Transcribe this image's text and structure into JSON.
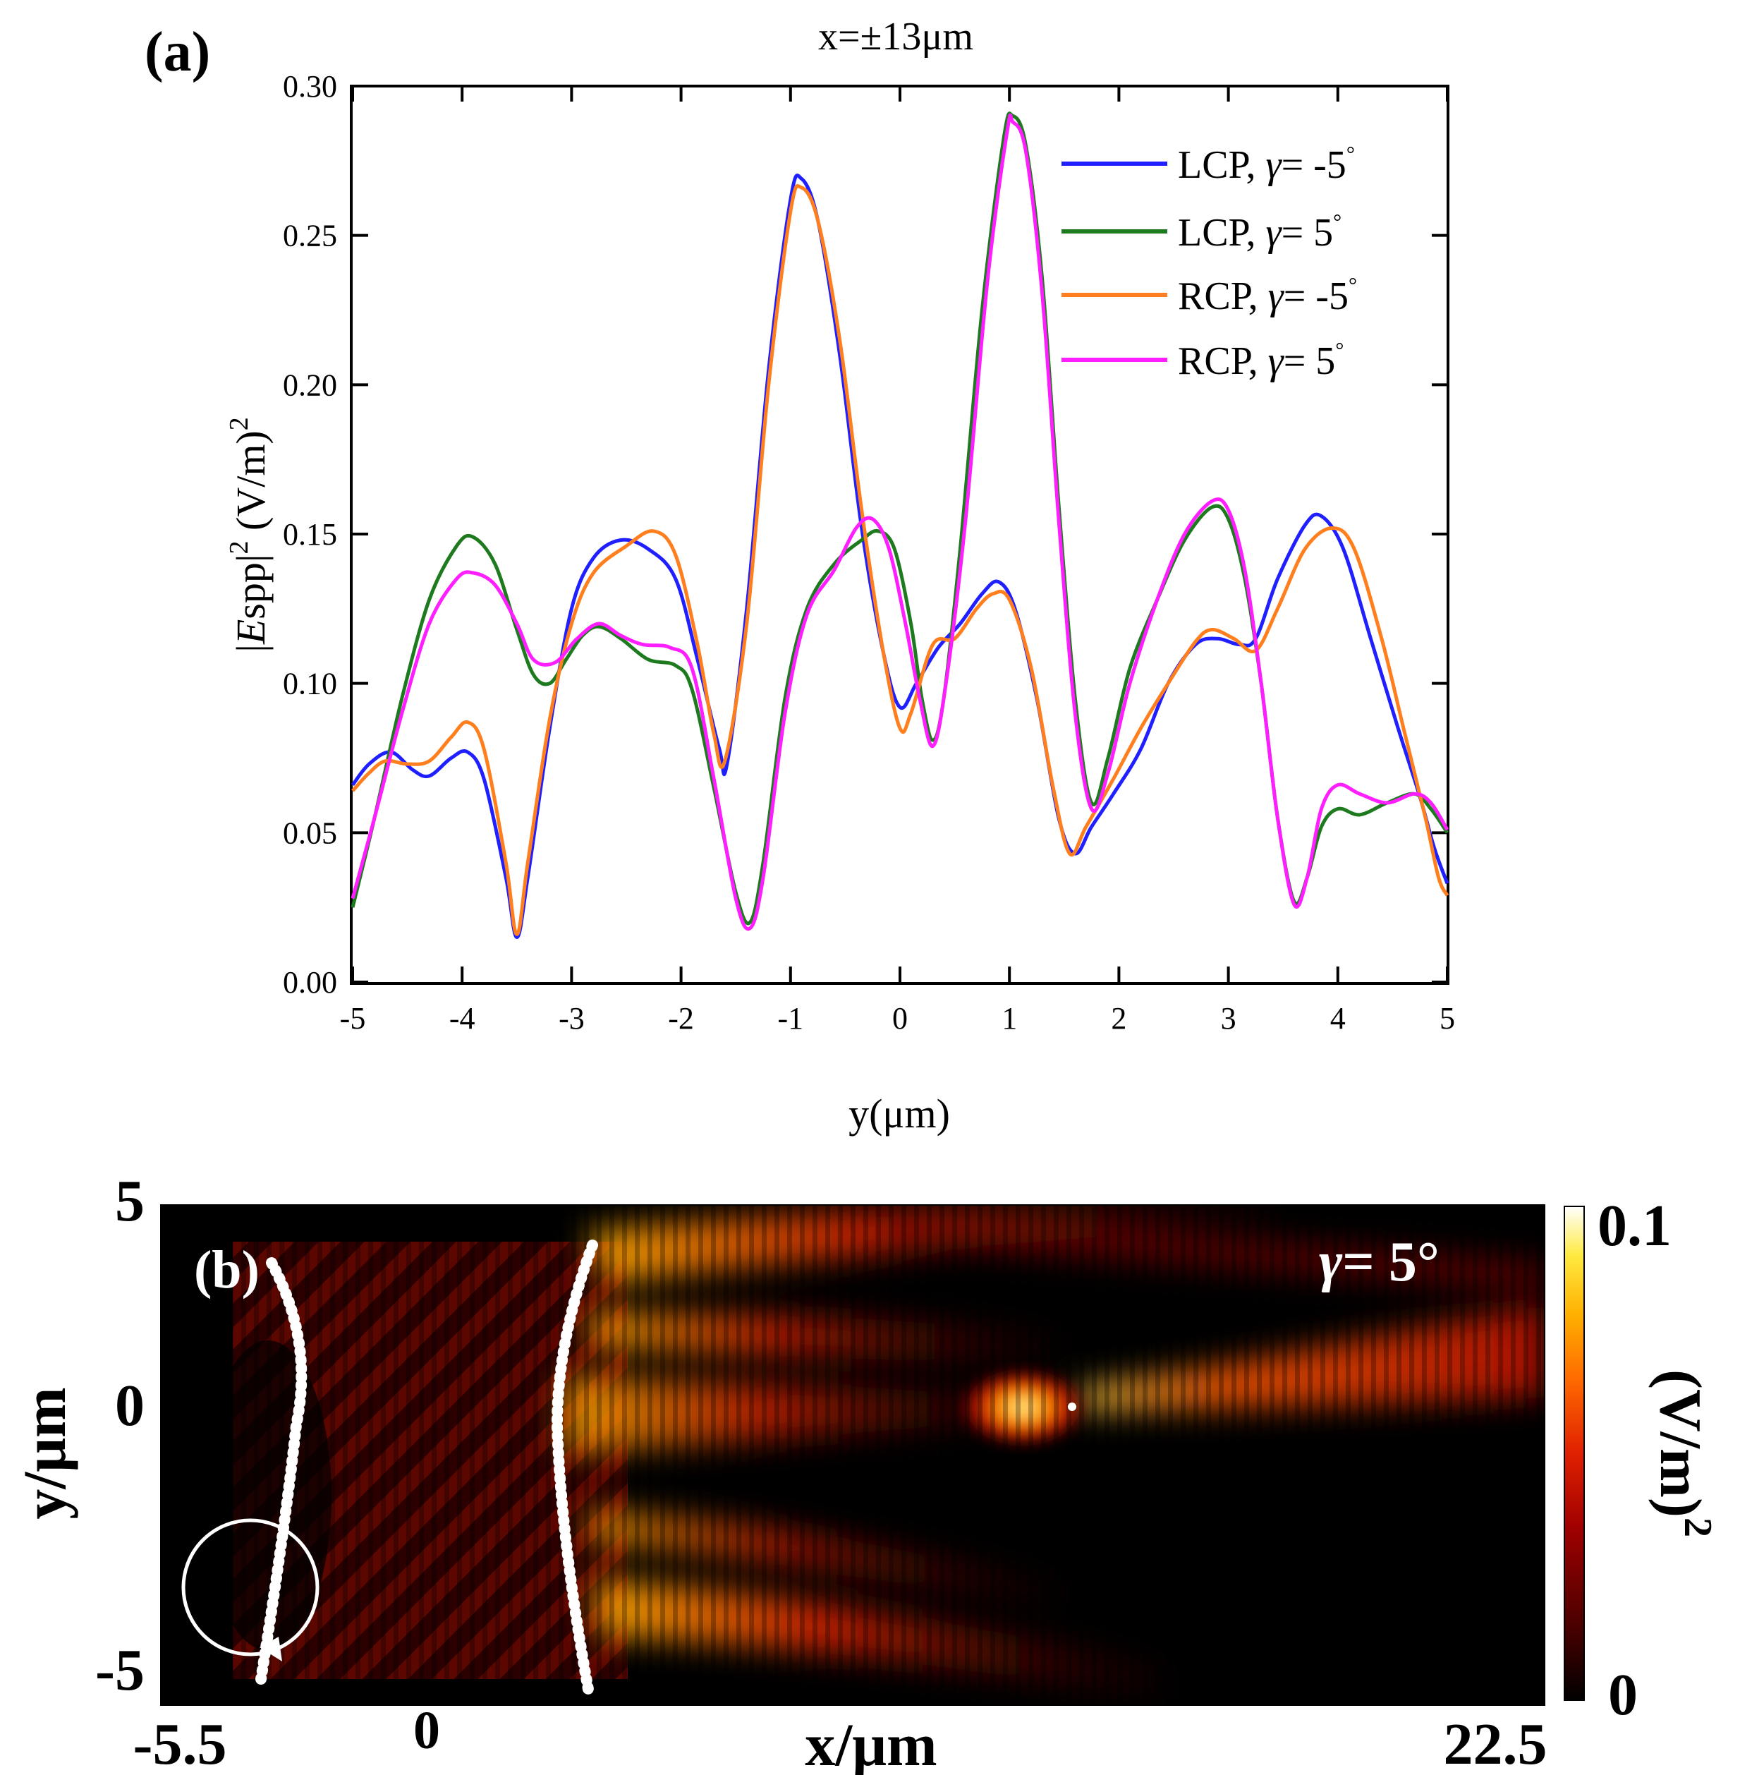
{
  "chart_data": [
    {
      "panel": "(a)",
      "type": "line",
      "title": "x=±13μm",
      "xlabel": "y(μm)",
      "ylabel_parts": [
        "|",
        "E",
        "spp|",
        "2",
        " (V/m)",
        "2"
      ],
      "xlim": [
        -5,
        5
      ],
      "ylim": [
        0,
        0.3
      ],
      "xticks": [
        "-5",
        "-4",
        "-3",
        "-2",
        "-1",
        "0",
        "1",
        "2",
        "3",
        "4",
        "5"
      ],
      "yticks": [
        "0.00",
        "0.05",
        "0.10",
        "0.15",
        "0.20",
        "0.25",
        "0.30"
      ],
      "legend_position": "top-right",
      "series": [
        {
          "name": "LCP, γ= -5°",
          "label_prefix": "LCP, ",
          "gamma_value": "= -5",
          "color": "#1f1fff",
          "points": [
            [
              -5,
              0.066
            ],
            [
              -4.85,
              0.073
            ],
            [
              -4.65,
              0.077
            ],
            [
              -4.45,
              0.071
            ],
            [
              -4.3,
              0.069
            ],
            [
              -4.1,
              0.075
            ],
            [
              -3.95,
              0.077
            ],
            [
              -3.8,
              0.068
            ],
            [
              -3.6,
              0.035
            ],
            [
              -3.5,
              0.015
            ],
            [
              -3.4,
              0.035
            ],
            [
              -3.2,
              0.085
            ],
            [
              -3,
              0.125
            ],
            [
              -2.8,
              0.142
            ],
            [
              -2.55,
              0.148
            ],
            [
              -2.3,
              0.145
            ],
            [
              -2.05,
              0.135
            ],
            [
              -1.85,
              0.108
            ],
            [
              -1.65,
              0.078
            ],
            [
              -1.58,
              0.073
            ],
            [
              -1.4,
              0.125
            ],
            [
              -1.2,
              0.205
            ],
            [
              -1.0,
              0.262
            ],
            [
              -0.9,
              0.269
            ],
            [
              -0.75,
              0.255
            ],
            [
              -0.55,
              0.21
            ],
            [
              -0.35,
              0.152
            ],
            [
              -0.15,
              0.11
            ],
            [
              0,
              0.092
            ],
            [
              0.15,
              0.1
            ],
            [
              0.35,
              0.112
            ],
            [
              0.55,
              0.12
            ],
            [
              0.75,
              0.13
            ],
            [
              0.9,
              0.134
            ],
            [
              1.05,
              0.125
            ],
            [
              1.25,
              0.095
            ],
            [
              1.45,
              0.055
            ],
            [
              1.6,
              0.043
            ],
            [
              1.75,
              0.052
            ],
            [
              1.95,
              0.063
            ],
            [
              2.2,
              0.078
            ],
            [
              2.45,
              0.1
            ],
            [
              2.7,
              0.113
            ],
            [
              2.9,
              0.115
            ],
            [
              3.1,
              0.113
            ],
            [
              3.25,
              0.115
            ],
            [
              3.45,
              0.135
            ],
            [
              3.7,
              0.153
            ],
            [
              3.85,
              0.156
            ],
            [
              4.05,
              0.145
            ],
            [
              4.3,
              0.115
            ],
            [
              4.55,
              0.085
            ],
            [
              4.75,
              0.062
            ],
            [
              4.88,
              0.045
            ],
            [
              5,
              0.033
            ]
          ]
        },
        {
          "name": "LCP, γ= 5°",
          "label_prefix": "LCP, ",
          "gamma_value": "= 5",
          "color": "#1e7a1e",
          "points": [
            [
              -5,
              0.025
            ],
            [
              -4.8,
              0.055
            ],
            [
              -4.55,
              0.095
            ],
            [
              -4.3,
              0.128
            ],
            [
              -4.05,
              0.146
            ],
            [
              -3.9,
              0.149
            ],
            [
              -3.7,
              0.14
            ],
            [
              -3.5,
              0.118
            ],
            [
              -3.35,
              0.103
            ],
            [
              -3.2,
              0.1
            ],
            [
              -3.05,
              0.108
            ],
            [
              -2.9,
              0.116
            ],
            [
              -2.75,
              0.119
            ],
            [
              -2.55,
              0.115
            ],
            [
              -2.3,
              0.108
            ],
            [
              -2.05,
              0.106
            ],
            [
              -1.9,
              0.098
            ],
            [
              -1.7,
              0.065
            ],
            [
              -1.5,
              0.03
            ],
            [
              -1.37,
              0.02
            ],
            [
              -1.25,
              0.04
            ],
            [
              -1.05,
              0.095
            ],
            [
              -0.85,
              0.125
            ],
            [
              -0.6,
              0.14
            ],
            [
              -0.35,
              0.148
            ],
            [
              -0.2,
              0.151
            ],
            [
              -0.05,
              0.145
            ],
            [
              0.1,
              0.12
            ],
            [
              0.2,
              0.095
            ],
            [
              0.3,
              0.081
            ],
            [
              0.4,
              0.095
            ],
            [
              0.55,
              0.145
            ],
            [
              0.75,
              0.225
            ],
            [
              0.95,
              0.283
            ],
            [
              1.03,
              0.29
            ],
            [
              1.15,
              0.28
            ],
            [
              1.3,
              0.235
            ],
            [
              1.45,
              0.16
            ],
            [
              1.6,
              0.095
            ],
            [
              1.75,
              0.06
            ],
            [
              1.9,
              0.075
            ],
            [
              2.1,
              0.105
            ],
            [
              2.35,
              0.128
            ],
            [
              2.6,
              0.148
            ],
            [
              2.85,
              0.159
            ],
            [
              3.0,
              0.155
            ],
            [
              3.15,
              0.135
            ],
            [
              3.3,
              0.1
            ],
            [
              3.45,
              0.055
            ],
            [
              3.6,
              0.027
            ],
            [
              3.72,
              0.035
            ],
            [
              3.85,
              0.052
            ],
            [
              4.0,
              0.058
            ],
            [
              4.2,
              0.056
            ],
            [
              4.45,
              0.06
            ],
            [
              4.7,
              0.063
            ],
            [
              4.85,
              0.058
            ],
            [
              5,
              0.05
            ]
          ]
        },
        {
          "name": "RCP, γ= -5°",
          "label_prefix": "RCP, ",
          "gamma_value": "= -5",
          "color": "#ff7f1e",
          "points": [
            [
              -5,
              0.064
            ],
            [
              -4.85,
              0.07
            ],
            [
              -4.7,
              0.074
            ],
            [
              -4.5,
              0.073
            ],
            [
              -4.3,
              0.074
            ],
            [
              -4.1,
              0.082
            ],
            [
              -3.95,
              0.087
            ],
            [
              -3.8,
              0.078
            ],
            [
              -3.6,
              0.04
            ],
            [
              -3.5,
              0.016
            ],
            [
              -3.4,
              0.04
            ],
            [
              -3.2,
              0.088
            ],
            [
              -3,
              0.12
            ],
            [
              -2.8,
              0.137
            ],
            [
              -2.5,
              0.146
            ],
            [
              -2.25,
              0.151
            ],
            [
              -2.05,
              0.143
            ],
            [
              -1.85,
              0.113
            ],
            [
              -1.7,
              0.083
            ],
            [
              -1.6,
              0.074
            ],
            [
              -1.4,
              0.12
            ],
            [
              -1.2,
              0.2
            ],
            [
              -1.0,
              0.258
            ],
            [
              -0.9,
              0.266
            ],
            [
              -0.75,
              0.255
            ],
            [
              -0.55,
              0.215
            ],
            [
              -0.35,
              0.158
            ],
            [
              -0.15,
              0.11
            ],
            [
              0,
              0.085
            ],
            [
              0.1,
              0.09
            ],
            [
              0.3,
              0.113
            ],
            [
              0.5,
              0.115
            ],
            [
              0.7,
              0.125
            ],
            [
              0.85,
              0.13
            ],
            [
              1.0,
              0.128
            ],
            [
              1.2,
              0.105
            ],
            [
              1.4,
              0.065
            ],
            [
              1.55,
              0.043
            ],
            [
              1.7,
              0.052
            ],
            [
              1.95,
              0.068
            ],
            [
              2.2,
              0.085
            ],
            [
              2.45,
              0.1
            ],
            [
              2.7,
              0.114
            ],
            [
              2.85,
              0.118
            ],
            [
              3.05,
              0.115
            ],
            [
              3.25,
              0.111
            ],
            [
              3.45,
              0.125
            ],
            [
              3.7,
              0.145
            ],
            [
              3.95,
              0.152
            ],
            [
              4.15,
              0.145
            ],
            [
              4.4,
              0.115
            ],
            [
              4.6,
              0.085
            ],
            [
              4.8,
              0.055
            ],
            [
              4.92,
              0.035
            ],
            [
              5,
              0.029
            ]
          ]
        },
        {
          "name": "RCP, γ= 5°",
          "label_prefix": "RCP, ",
          "gamma_value": "= 5",
          "color": "#ff1eff",
          "points": [
            [
              -5,
              0.028
            ],
            [
              -4.8,
              0.055
            ],
            [
              -4.55,
              0.09
            ],
            [
              -4.3,
              0.12
            ],
            [
              -4.05,
              0.135
            ],
            [
              -3.9,
              0.137
            ],
            [
              -3.7,
              0.133
            ],
            [
              -3.5,
              0.12
            ],
            [
              -3.35,
              0.108
            ],
            [
              -3.15,
              0.107
            ],
            [
              -2.95,
              0.115
            ],
            [
              -2.75,
              0.12
            ],
            [
              -2.55,
              0.116
            ],
            [
              -2.35,
              0.113
            ],
            [
              -2.1,
              0.112
            ],
            [
              -1.9,
              0.105
            ],
            [
              -1.7,
              0.068
            ],
            [
              -1.5,
              0.028
            ],
            [
              -1.37,
              0.018
            ],
            [
              -1.25,
              0.035
            ],
            [
              -1.05,
              0.09
            ],
            [
              -0.85,
              0.123
            ],
            [
              -0.6,
              0.138
            ],
            [
              -0.4,
              0.152
            ],
            [
              -0.25,
              0.155
            ],
            [
              -0.1,
              0.145
            ],
            [
              0.05,
              0.12
            ],
            [
              0.18,
              0.095
            ],
            [
              0.3,
              0.079
            ],
            [
              0.42,
              0.1
            ],
            [
              0.6,
              0.155
            ],
            [
              0.8,
              0.235
            ],
            [
              0.98,
              0.285
            ],
            [
              1.03,
              0.288
            ],
            [
              1.15,
              0.278
            ],
            [
              1.3,
              0.23
            ],
            [
              1.45,
              0.155
            ],
            [
              1.6,
              0.09
            ],
            [
              1.75,
              0.058
            ],
            [
              1.9,
              0.07
            ],
            [
              2.1,
              0.1
            ],
            [
              2.35,
              0.128
            ],
            [
              2.6,
              0.15
            ],
            [
              2.85,
              0.161
            ],
            [
              3.0,
              0.158
            ],
            [
              3.15,
              0.138
            ],
            [
              3.3,
              0.1
            ],
            [
              3.45,
              0.055
            ],
            [
              3.6,
              0.026
            ],
            [
              3.72,
              0.035
            ],
            [
              3.85,
              0.058
            ],
            [
              4.0,
              0.066
            ],
            [
              4.2,
              0.063
            ],
            [
              4.45,
              0.06
            ],
            [
              4.7,
              0.063
            ],
            [
              4.85,
              0.06
            ],
            [
              5,
              0.051
            ]
          ]
        }
      ]
    },
    {
      "panel": "(b)",
      "type": "heatmap",
      "annotation_prefix": "γ",
      "annotation_value": "= 5°",
      "xlabel": "x/μm",
      "ylabel": "y/μm",
      "xlim": [
        -5.5,
        22.5
      ],
      "ylim": [
        -5,
        5
      ],
      "xtick_labels": [
        "-5.5",
        "0",
        "22.5"
      ],
      "ytick_labels": [
        "5",
        "0",
        "-5"
      ],
      "colorbar": {
        "min_label": "0",
        "max_label": "0.1",
        "unit_label": "(V/m)",
        "unit_sup": "2"
      },
      "colormap": [
        "#000000",
        "#4a0000",
        "#a00000",
        "#e02000",
        "#ff6a00",
        "#ffb000",
        "#ffea40",
        "#ffffff"
      ]
    }
  ]
}
